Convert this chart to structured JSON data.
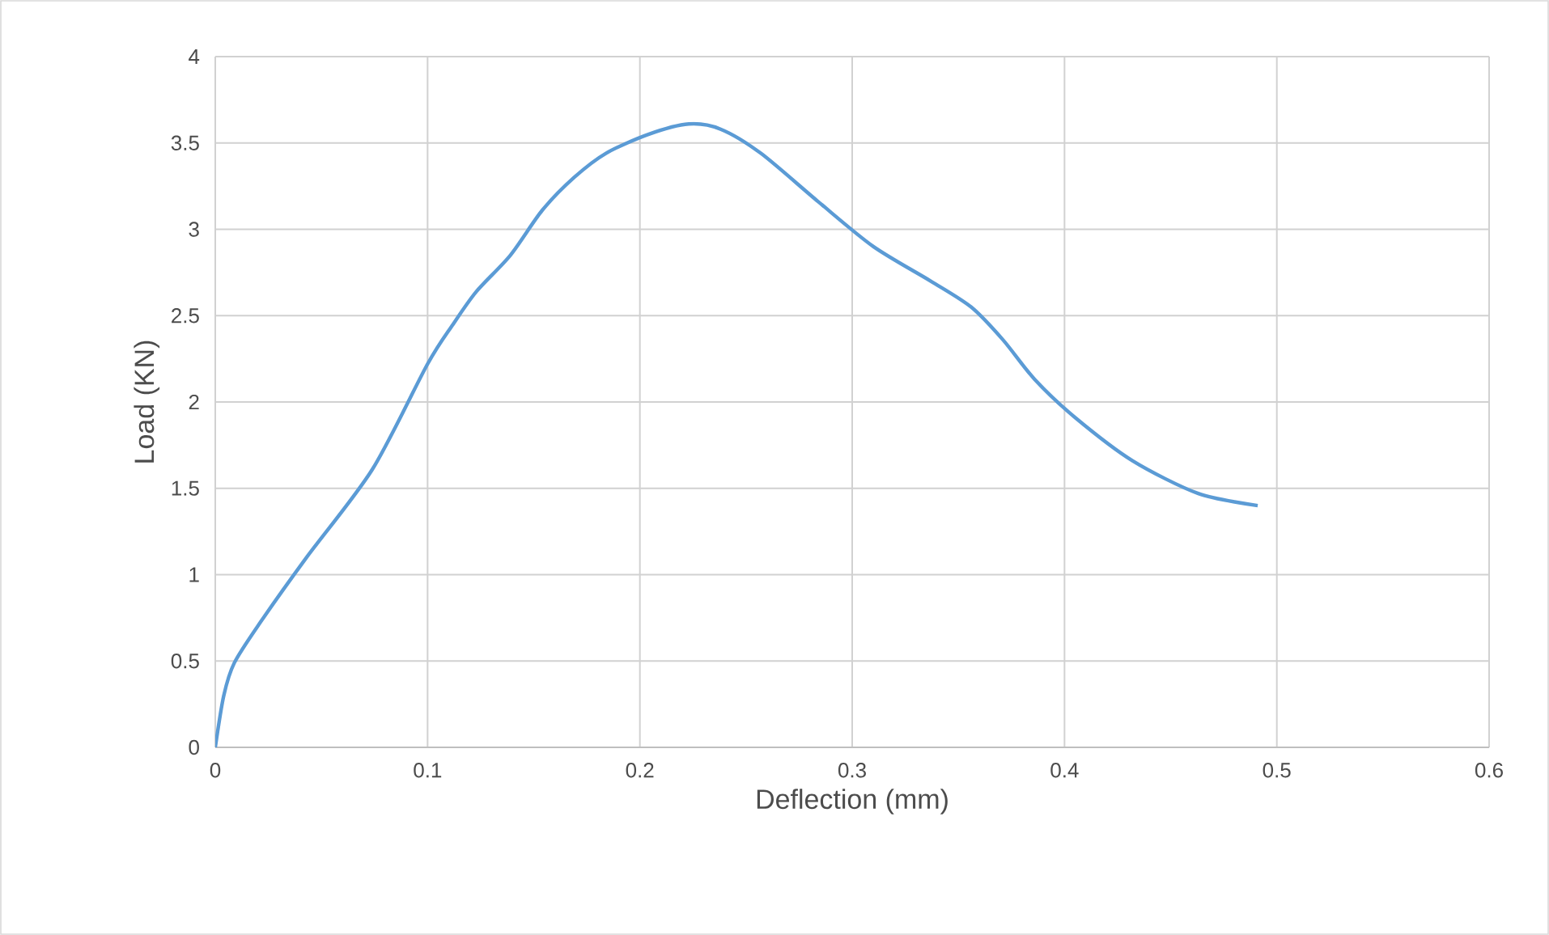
{
  "chart_data": {
    "type": "line",
    "xlabel": "Deflection (mm)",
    "ylabel": "Load (KN)",
    "x": [
      0,
      0.004,
      0.009,
      0.021,
      0.043,
      0.074,
      0.1,
      0.112,
      0.123,
      0.139,
      0.154,
      0.169,
      0.184,
      0.204,
      0.223,
      0.238,
      0.257,
      0.284,
      0.31,
      0.337,
      0.356,
      0.371,
      0.386,
      0.405,
      0.432,
      0.463,
      0.491
    ],
    "series": [
      {
        "color": "#5b9bd5",
        "values": [
          0,
          0.3,
          0.49,
          0.72,
          1.1,
          1.61,
          2.22,
          2.45,
          2.64,
          2.85,
          3.11,
          3.3,
          3.44,
          3.55,
          3.61,
          3.58,
          3.44,
          3.16,
          2.9,
          2.7,
          2.55,
          2.36,
          2.13,
          1.91,
          1.66,
          1.47,
          1.4
        ]
      }
    ],
    "xlim": [
      0,
      0.6
    ],
    "xticks": [
      0,
      0.1,
      0.2,
      0.3,
      0.4,
      0.5,
      0.6
    ],
    "ylim": [
      0,
      4
    ],
    "yticks": [
      0,
      0.5,
      1,
      1.5,
      2,
      2.5,
      3,
      3.5,
      4
    ],
    "grid": true,
    "legend": false,
    "marker": "none",
    "line_style": "solid"
  }
}
